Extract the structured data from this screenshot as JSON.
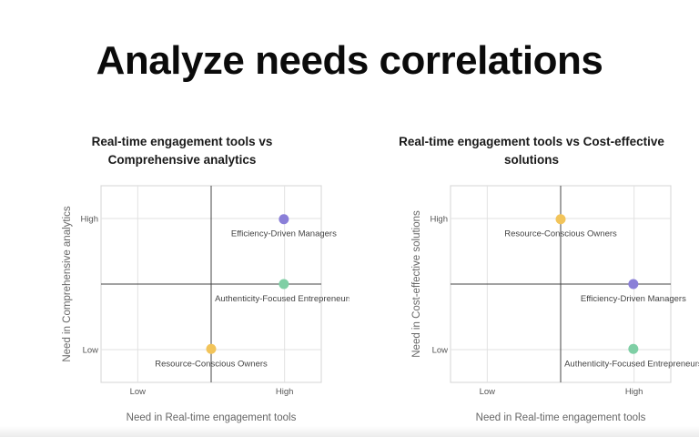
{
  "page": {
    "title": "Analyze needs correlations"
  },
  "chart_data": [
    {
      "type": "scatter",
      "title": "Real-time engagement tools vs Comprehensive analytics",
      "xlabel": "Need in Real-time engagement tools",
      "ylabel": "Need in Comprehensive analytics",
      "x_ticks": [
        "Low",
        "High"
      ],
      "y_ticks": [
        "Low",
        "High"
      ],
      "xlim": [
        0,
        1
      ],
      "ylim": [
        0,
        1
      ],
      "grid": true,
      "points": [
        {
          "label": "Efficiency-Driven Managers",
          "x": 0.83,
          "y": 0.83,
          "color": "#8a7fd8"
        },
        {
          "label": "Authenticity-Focused Entrepreneurs",
          "x": 0.83,
          "y": 0.5,
          "color": "#7fcfa5"
        },
        {
          "label": "Resource-Conscious Owners",
          "x": 0.5,
          "y": 0.17,
          "color": "#f2c45a"
        }
      ]
    },
    {
      "type": "scatter",
      "title": "Real-time engagement tools vs Cost-effective solutions",
      "xlabel": "Need in Real-time engagement tools",
      "ylabel": "Need in Cost-effective solutions",
      "x_ticks": [
        "Low",
        "High"
      ],
      "y_ticks": [
        "Low",
        "High"
      ],
      "xlim": [
        0,
        1
      ],
      "ylim": [
        0,
        1
      ],
      "grid": true,
      "points": [
        {
          "label": "Resource-Conscious Owners",
          "x": 0.5,
          "y": 0.83,
          "color": "#f2c45a"
        },
        {
          "label": "Efficiency-Driven Managers",
          "x": 0.83,
          "y": 0.5,
          "color": "#8a7fd8"
        },
        {
          "label": "Authenticity-Focused Entrepreneurs",
          "x": 0.83,
          "y": 0.17,
          "color": "#7fcfa5"
        }
      ]
    }
  ]
}
